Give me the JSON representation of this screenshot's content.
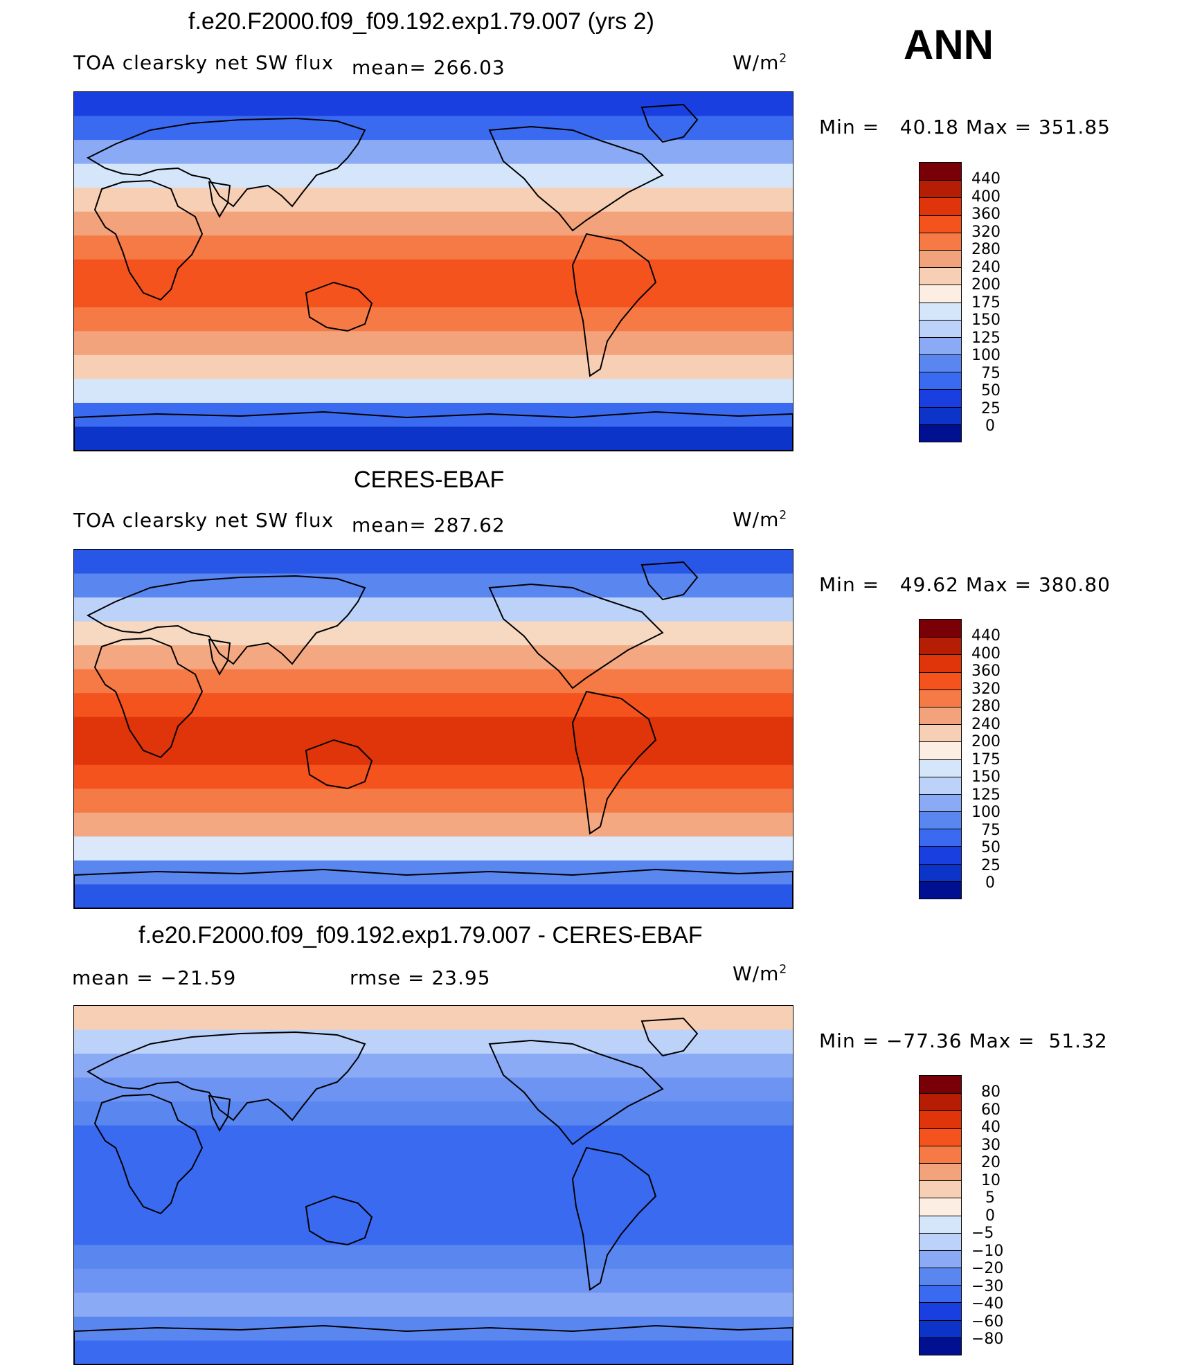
{
  "season": "ANN",
  "panels": [
    {
      "title": "f.e20.F2000.f09_f09.192.exp1.79.007 (yrs 2)",
      "left_label": "TOA clearsky net SW flux",
      "stat1": "mean= 266.03",
      "units": "W/m",
      "units_sup": "2",
      "min_label": "Min =",
      "min_value": "40.18",
      "max_label": "Max =",
      "max_value": "351.85",
      "levels": [
        "440",
        "400",
        "360",
        "320",
        "280",
        "240",
        "200",
        "175",
        "150",
        "125",
        "100",
        "75",
        "50",
        "25",
        "0"
      ],
      "bands": [
        "#1a3fe0",
        "#3a6af0",
        "#8aaaf5",
        "#d5e6fb",
        "#f7cfb4",
        "#f3a37c",
        "#f57a45",
        "#f4531e",
        "#f4531e",
        "#f57a45",
        "#f3a37c",
        "#f7cfb4",
        "#d5e6fb",
        "#3a6af0",
        "#0d34c8"
      ]
    },
    {
      "title": "CERES-EBAF",
      "left_label": "TOA clearsky net SW flux",
      "stat1": "mean= 287.62",
      "units": "W/m",
      "units_sup": "2",
      "min_label": "Min =",
      "min_value": "49.62",
      "max_label": "Max =",
      "max_value": "380.80",
      "levels": [
        "440",
        "400",
        "360",
        "320",
        "280",
        "240",
        "200",
        "175",
        "150",
        "125",
        "100",
        "75",
        "50",
        "25",
        "0"
      ],
      "bands": [
        "#2856e6",
        "#5a86f0",
        "#bcd2f8",
        "#f7d9c2",
        "#f4a882",
        "#f57a45",
        "#f4531e",
        "#e0340a",
        "#e0340a",
        "#f4531e",
        "#f57a45",
        "#f4a882",
        "#dbe8fb",
        "#5a86f0",
        "#2856e6"
      ]
    },
    {
      "title": "f.e20.F2000.f09_f09.192.exp1.79.007 - CERES-EBAF",
      "left_label": "mean = −21.59",
      "stat1": "rmse = 23.95",
      "units": "W/m",
      "units_sup": "2",
      "min_label": "Min =",
      "min_value": "−77.36",
      "max_label": "Max =",
      "max_value": "51.32",
      "levels": [
        "80",
        "60",
        "40",
        "30",
        "20",
        "10",
        "5",
        "0",
        "−5",
        "−10",
        "−20",
        "−30",
        "−40",
        "−60",
        "−80"
      ],
      "bands": [
        "#f7cfb4",
        "#bcd2f8",
        "#8aaaf5",
        "#6d94f2",
        "#5a86f0",
        "#3a6af0",
        "#3a6af0",
        "#3a6af0",
        "#3a6af0",
        "#3a6af0",
        "#5a86f0",
        "#6d94f2",
        "#8aaaf5",
        "#5a86f0",
        "#3a6af0"
      ]
    }
  ],
  "colorbar_colors": [
    "#7a0008",
    "#b51e05",
    "#e0340a",
    "#f4531e",
    "#f57a45",
    "#f3a37c",
    "#f7cfb4",
    "#fdeee3",
    "#d5e6fb",
    "#bcd2f8",
    "#8aaaf5",
    "#5a86f0",
    "#3a6af0",
    "#1a3fe0",
    "#0d34c8",
    "#001090"
  ]
}
